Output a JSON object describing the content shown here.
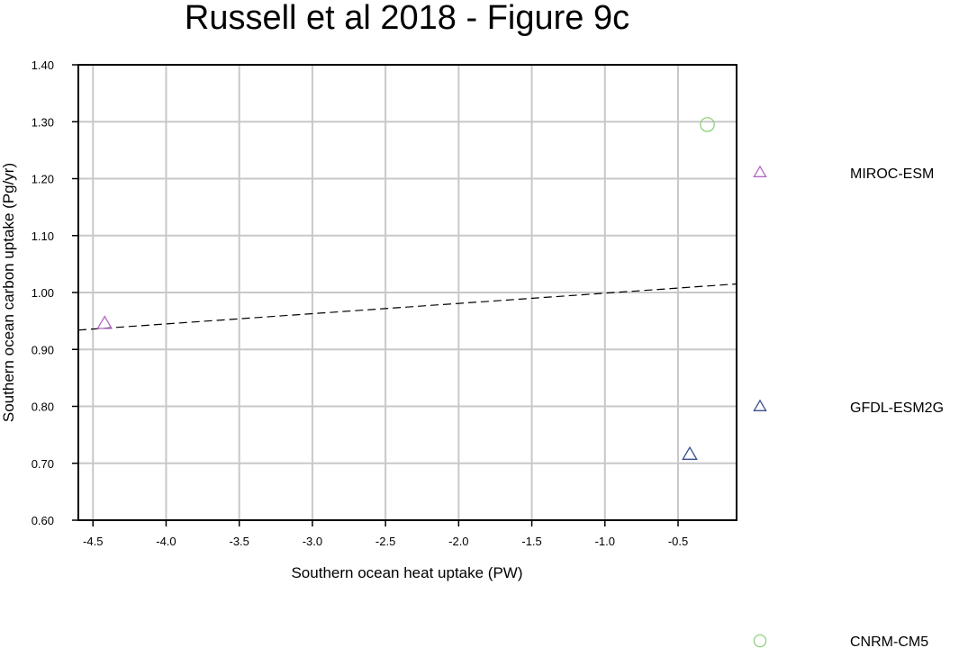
{
  "chart_data": {
    "type": "scatter",
    "title": "Russell et al 2018 - Figure 9c",
    "xlabel": "Southern ocean heat uptake (PW)",
    "ylabel": "Southern ocean carbon uptake (Pg/yr)",
    "xlim": [
      -4.6,
      -0.1
    ],
    "ylim": [
      0.6,
      1.4
    ],
    "grid": true,
    "x_ticks": [
      -4.5,
      -4.0,
      -3.5,
      -3.0,
      -2.5,
      -2.0,
      -1.5,
      -1.0,
      -0.5
    ],
    "x_tick_labels": [
      "-4.5",
      "-4.0",
      "-3.5",
      "-3.0",
      "-2.5",
      "-2.0",
      "-1.5",
      "-1.0",
      "-0.5"
    ],
    "y_ticks": [
      0.6,
      0.7,
      0.8,
      0.9,
      1.0,
      1.1,
      1.2,
      1.3,
      1.4
    ],
    "y_tick_labels": [
      "0.60",
      "0.70",
      "0.80",
      "0.90",
      "1.00",
      "1.10",
      "1.20",
      "1.30",
      "1.40"
    ],
    "series": [
      {
        "name": "MIROC-ESM",
        "marker": "triangle",
        "color": "#b267c4",
        "x": -4.42,
        "y": 0.945
      },
      {
        "name": "GFDL-ESM2G",
        "marker": "triangle",
        "color": "#3a4f8c",
        "x": -0.42,
        "y": 0.715
      },
      {
        "name": "CNRM-CM5",
        "marker": "circle",
        "color": "#8fd07a",
        "x": -0.3,
        "y": 1.295
      }
    ],
    "trend_line": {
      "style": "dashed",
      "color": "#000000",
      "x": [
        -4.6,
        -0.1
      ],
      "y": [
        0.934,
        1.015
      ]
    },
    "legend_position": "right"
  }
}
